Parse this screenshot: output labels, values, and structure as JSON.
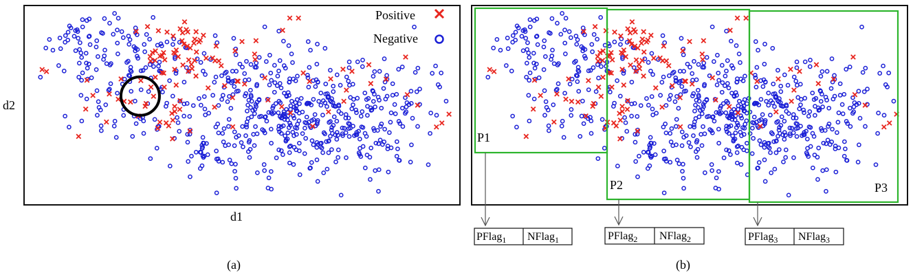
{
  "colors": {
    "positive": "#e8261f",
    "negative": "#1a1fd6",
    "partition": "#2db52d",
    "frame": "#111111",
    "circle": "#000000"
  },
  "chart_data": [
    {
      "type": "scatter",
      "panel_label": "(a)",
      "xlabel": "d1",
      "ylabel": "d2",
      "legend": {
        "placement": "top-right",
        "positive_label": "Positive",
        "negative_label": "Negative",
        "positive_marker": "x",
        "negative_marker": "o"
      },
      "xlim": [
        0,
        1
      ],
      "ylim": [
        0,
        1
      ],
      "highlight_circle": {
        "cx": 0.31,
        "cy": 0.6,
        "r": 0.045
      }
    },
    {
      "type": "scatter",
      "panel_label": "(b)",
      "partitions": [
        {
          "label": "P1",
          "x": [
            0.0,
            0.31
          ],
          "flag_p": "PFlag",
          "flag_n": "NFlag",
          "sub": "1"
        },
        {
          "label": "P2",
          "x": [
            0.31,
            0.65
          ],
          "flag_p": "PFlag",
          "flag_n": "NFlag",
          "sub": "2"
        },
        {
          "label": "P3",
          "x": [
            0.65,
            1.0
          ],
          "flag_p": "PFlag",
          "flag_n": "NFlag",
          "sub": "3"
        }
      ]
    }
  ]
}
